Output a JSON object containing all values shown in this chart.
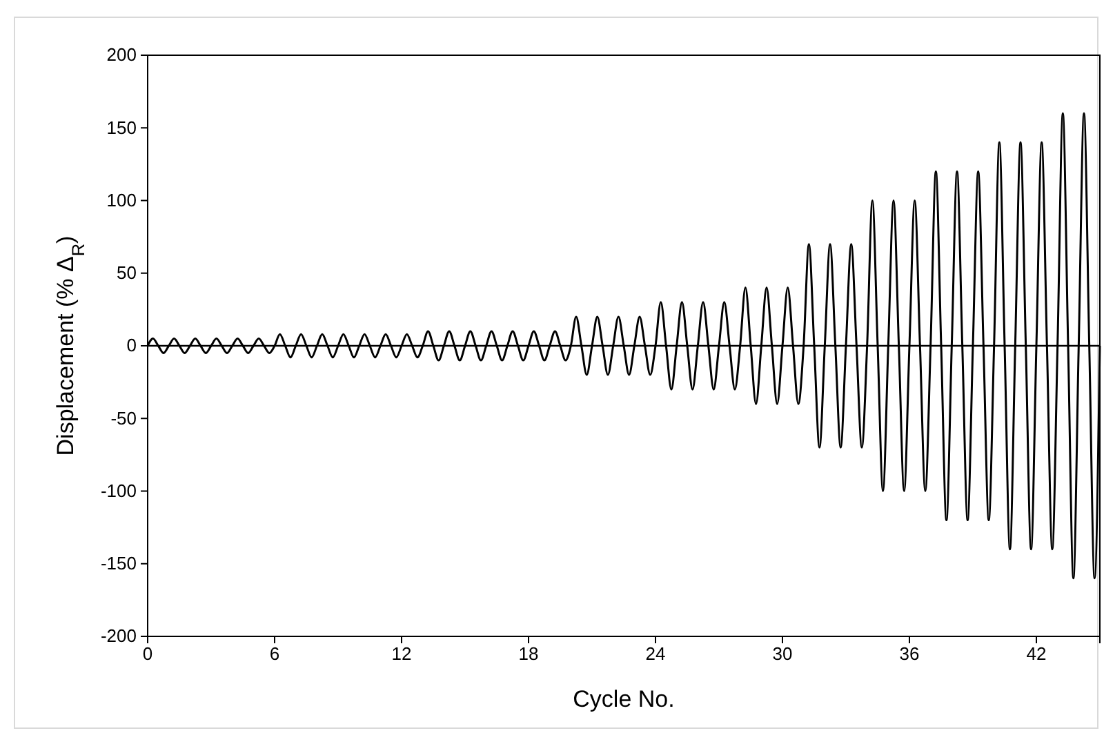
{
  "chart_data": {
    "type": "line",
    "xlabel": "Cycle No.",
    "ylabel": "Displacement (% Δ$_{R}$)",
    "xlim": [
      0,
      45
    ],
    "xticks": [
      0,
      6,
      12,
      18,
      24,
      30,
      36,
      42
    ],
    "ylim": [
      -200,
      200
    ],
    "yticks": [
      -200,
      -150,
      -100,
      -50,
      0,
      50,
      100,
      150,
      200
    ],
    "grid": false,
    "marker": "none",
    "line_style": "solid",
    "ref_lines": [
      {
        "axis": "y",
        "value": 0,
        "color": "#000000"
      }
    ],
    "series": [
      {
        "color": "#000000",
        "x": [
          0,
          0.25,
          0.5,
          0.75,
          1,
          1.25,
          1.5,
          1.75,
          2,
          2.25,
          2.5,
          2.75,
          3,
          3.25,
          3.5,
          3.75,
          4,
          4.25,
          4.5,
          4.75,
          5,
          5.25,
          5.5,
          5.75,
          6,
          6.25,
          6.5,
          6.75,
          7,
          7.25,
          7.5,
          7.75,
          8,
          8.25,
          8.5,
          8.75,
          9,
          9.25,
          9.5,
          9.75,
          10,
          10.25,
          10.5,
          10.75,
          11,
          11.25,
          11.5,
          11.75,
          12,
          12.25,
          12.5,
          12.75,
          13,
          13.25,
          13.5,
          13.75,
          14,
          14.25,
          14.5,
          14.75,
          15,
          15.25,
          15.5,
          15.75,
          16,
          16.25,
          16.5,
          16.75,
          17,
          17.25,
          17.5,
          17.75,
          18,
          18.25,
          18.5,
          18.75,
          19,
          19.25,
          19.5,
          19.75,
          20,
          20.25,
          20.5,
          20.75,
          21,
          21.25,
          21.5,
          21.75,
          22,
          22.25,
          22.5,
          22.75,
          23,
          23.25,
          23.5,
          23.75,
          24,
          24.25,
          24.5,
          24.75,
          25,
          25.25,
          25.5,
          25.75,
          26,
          26.25,
          26.5,
          26.75,
          27,
          27.25,
          27.5,
          27.75,
          28,
          28.25,
          28.5,
          28.75,
          29,
          29.25,
          29.5,
          29.75,
          30,
          30.25,
          30.5,
          30.75,
          31,
          31.25,
          31.5,
          31.75,
          32,
          32.25,
          32.5,
          32.75,
          33,
          33.25,
          33.5,
          33.75,
          34,
          34.25,
          34.5,
          34.75,
          35,
          35.25,
          35.5,
          35.75,
          36,
          36.25,
          36.5,
          36.75,
          37,
          37.25,
          37.5,
          37.75,
          38,
          38.25,
          38.5,
          38.75,
          39,
          39.25,
          39.5,
          39.75,
          40,
          40.25,
          40.5,
          40.75,
          41,
          41.25,
          41.5,
          41.75,
          42,
          42.25,
          42.5,
          42.75,
          43,
          43.25,
          43.5,
          43.75,
          44,
          44.25,
          44.5,
          44.75,
          45
        ],
        "values": [
          0,
          5,
          0,
          -5,
          0,
          5,
          0,
          -5,
          0,
          5,
          0,
          -5,
          0,
          5,
          0,
          -5,
          0,
          5,
          0,
          -5,
          0,
          5,
          0,
          -5,
          0,
          8,
          0,
          -8,
          0,
          8,
          0,
          -8,
          0,
          8,
          0,
          -8,
          0,
          8,
          0,
          -8,
          0,
          8,
          0,
          -8,
          0,
          8,
          0,
          -8,
          0,
          8,
          0,
          -8,
          0,
          10,
          0,
          -10,
          0,
          10,
          0,
          -10,
          0,
          10,
          0,
          -10,
          0,
          10,
          0,
          -10,
          0,
          10,
          0,
          -10,
          0,
          10,
          0,
          -10,
          0,
          10,
          0,
          -10,
          0,
          20,
          0,
          -20,
          0,
          20,
          0,
          -20,
          0,
          20,
          0,
          -20,
          0,
          20,
          0,
          -20,
          0,
          30,
          0,
          -30,
          0,
          30,
          0,
          -30,
          0,
          30,
          0,
          -30,
          0,
          30,
          0,
          -30,
          0,
          40,
          0,
          -40,
          0,
          40,
          0,
          -40,
          0,
          40,
          0,
          -40,
          0,
          70,
          0,
          -70,
          0,
          70,
          0,
          -70,
          0,
          70,
          0,
          -70,
          0,
          100,
          0,
          -100,
          0,
          100,
          0,
          -100,
          0,
          100,
          0,
          -100,
          0,
          120,
          0,
          -120,
          0,
          120,
          0,
          -120,
          0,
          120,
          0,
          -120,
          0,
          140,
          0,
          -140,
          0,
          140,
          0,
          -140,
          0,
          140,
          0,
          -140,
          0,
          160,
          0,
          -160,
          0,
          160,
          0,
          -160,
          0
        ]
      }
    ]
  }
}
